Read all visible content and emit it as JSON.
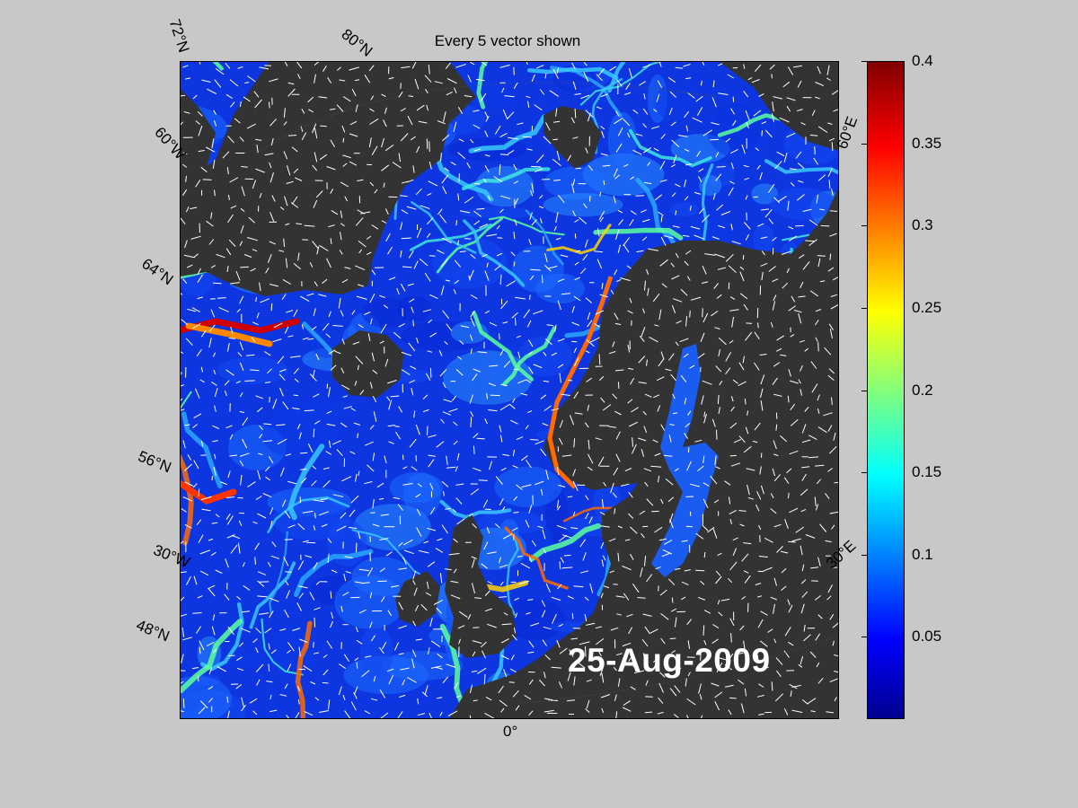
{
  "title": "Every 5 vector shown",
  "date": "25-Aug-2009",
  "graticule_labels": [
    {
      "id": "lat-72n",
      "text": "72°N"
    },
    {
      "id": "lat-80n",
      "text": "80°N"
    },
    {
      "id": "lat-60w",
      "text": "60°W"
    },
    {
      "id": "lat-64n",
      "text": "64°N"
    },
    {
      "id": "lat-56n",
      "text": "56°N"
    },
    {
      "id": "lon-30w",
      "text": "30°W"
    },
    {
      "id": "lat-48n",
      "text": "48°N"
    },
    {
      "id": "lon-0",
      "text": "0°"
    },
    {
      "id": "lon-60e",
      "text": "60°E"
    },
    {
      "id": "lon-30e",
      "text": "30°E"
    }
  ],
  "colorbar": {
    "min": 0,
    "max": 0.4,
    "colormap": "jet",
    "ticks": [
      "0.4",
      "0.35",
      "0.3",
      "0.25",
      "0.2",
      "0.15",
      "0.1",
      "0.05"
    ],
    "tick_values": [
      0.4,
      0.35,
      0.3,
      0.25,
      0.2,
      0.15,
      0.1,
      0.05
    ]
  },
  "colors": {
    "background": "#c8c8c8",
    "land": "#333333",
    "ocean_low": "#0a2bd8",
    "ocean_mid": "#1f7bff",
    "vectors": "#ffffff",
    "date_text": "#ffffff"
  }
}
